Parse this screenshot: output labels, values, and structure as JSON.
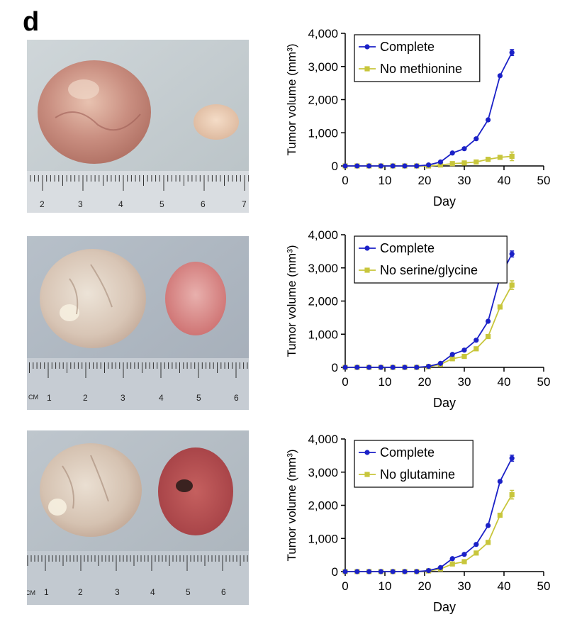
{
  "panel_label": "d",
  "colors": {
    "complete": "#1b21c7",
    "treated": "#c8c63c",
    "axis": "#000000"
  },
  "photos": [
    {
      "name": "photo-methionine",
      "scale_labels": [
        "2",
        "3",
        "4",
        "5",
        "6",
        "7"
      ]
    },
    {
      "name": "photo-serine-glycine",
      "scale_labels": [
        "CM",
        "1",
        "2",
        "3",
        "4",
        "5",
        "6"
      ]
    },
    {
      "name": "photo-glutamine",
      "scale_labels": [
        "CM",
        "1",
        "2",
        "3",
        "4",
        "5",
        "6"
      ]
    }
  ],
  "chart_data": [
    {
      "type": "line",
      "title": "",
      "xlabel": "Day",
      "ylabel": "Tumor volume (mm³)",
      "xlim": [
        0,
        50
      ],
      "ylim": [
        0,
        4000
      ],
      "xticks": [
        "0",
        "10",
        "20",
        "30",
        "40",
        "50"
      ],
      "yticks": [
        "0",
        "1,000",
        "2,000",
        "3,000",
        "4,000"
      ],
      "x": [
        0,
        3,
        6,
        9,
        12,
        15,
        18,
        21,
        24,
        27,
        30,
        33,
        36,
        39,
        42
      ],
      "series": [
        {
          "name": "Complete",
          "marker": "circle",
          "values": [
            0,
            0,
            0,
            0,
            0,
            0,
            0,
            30,
            120,
            390,
            520,
            820,
            1390,
            2720,
            3420
          ]
        },
        {
          "name": "No methionine",
          "marker": "square",
          "values": [
            0,
            0,
            0,
            0,
            0,
            0,
            0,
            0,
            30,
            70,
            90,
            120,
            200,
            260,
            290
          ]
        }
      ]
    },
    {
      "type": "line",
      "title": "",
      "xlabel": "Day",
      "ylabel": "Tumor volume (mm³)",
      "xlim": [
        0,
        50
      ],
      "ylim": [
        0,
        4000
      ],
      "xticks": [
        "0",
        "10",
        "20",
        "30",
        "40",
        "50"
      ],
      "yticks": [
        "0",
        "1,000",
        "2,000",
        "3,000",
        "4,000"
      ],
      "x": [
        0,
        3,
        6,
        9,
        12,
        15,
        18,
        21,
        24,
        27,
        30,
        33,
        36,
        39,
        42
      ],
      "series": [
        {
          "name": "Complete",
          "marker": "circle",
          "values": [
            0,
            0,
            0,
            0,
            0,
            0,
            0,
            30,
            120,
            390,
            520,
            820,
            1390,
            2720,
            3420
          ]
        },
        {
          "name": "No serine/glycine",
          "marker": "square",
          "values": [
            0,
            0,
            0,
            0,
            0,
            0,
            0,
            20,
            90,
            260,
            330,
            560,
            930,
            1820,
            2480
          ]
        }
      ]
    },
    {
      "type": "line",
      "title": "",
      "xlabel": "Day",
      "ylabel": "Tumor volume (mm³)",
      "xlim": [
        0,
        50
      ],
      "ylim": [
        0,
        4000
      ],
      "xticks": [
        "0",
        "10",
        "20",
        "30",
        "40",
        "50"
      ],
      "yticks": [
        "0",
        "1,000",
        "2,000",
        "3,000",
        "4,000"
      ],
      "x": [
        0,
        3,
        6,
        9,
        12,
        15,
        18,
        21,
        24,
        27,
        30,
        33,
        36,
        39,
        42
      ],
      "series": [
        {
          "name": "Complete",
          "marker": "circle",
          "values": [
            0,
            0,
            0,
            0,
            0,
            0,
            0,
            30,
            120,
            390,
            520,
            820,
            1390,
            2720,
            3420
          ]
        },
        {
          "name": "No glutamine",
          "marker": "square",
          "values": [
            0,
            0,
            0,
            0,
            0,
            0,
            0,
            20,
            80,
            230,
            300,
            560,
            880,
            1700,
            2320
          ]
        }
      ]
    }
  ]
}
